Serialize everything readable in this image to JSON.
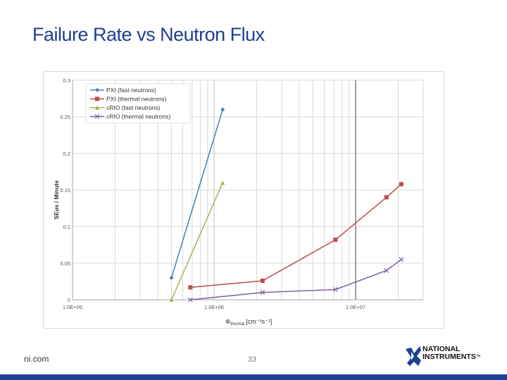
{
  "slide": {
    "title": "Failure Rate vs Neutron Flux",
    "footer_left": "ni.com",
    "page_number": "33",
    "logo_line1": "NATIONAL",
    "logo_line2": "INSTRUMENTS",
    "logo_mark": "™"
  },
  "chart_data": {
    "type": "line",
    "title": "",
    "xscale": "log",
    "xlim": [
      100000,
      30000000
    ],
    "ylim": [
      0,
      0.3
    ],
    "xticks": [
      {
        "value": 100000,
        "label": "1.0E+05"
      },
      {
        "value": 1000000,
        "label": "1.0E+06"
      },
      {
        "value": 10000000,
        "label": "1.0E+07"
      }
    ],
    "yticks": [
      {
        "value": 0,
        "label": "0"
      },
      {
        "value": 0.05,
        "label": "0.05"
      },
      {
        "value": 0.1,
        "label": "0.1"
      },
      {
        "value": 0.15,
        "label": "0.15"
      },
      {
        "value": 0.2,
        "label": "0.2"
      },
      {
        "value": 0.25,
        "label": "0.25"
      },
      {
        "value": 0.3,
        "label": "0.3"
      }
    ],
    "xlabel": "Φ",
    "xlabel_sub": "thermal",
    "xlabel_units": "[cm⁻²s⁻¹]",
    "ylabel": "SEus / Minute",
    "grid": true,
    "legend": "top-left",
    "series": [
      {
        "name": "PXI (fast neutrons)",
        "color": "#4a7ebb",
        "marker": "diamond",
        "x": [
          500000,
          1150000
        ],
        "y": [
          0.03,
          0.26
        ]
      },
      {
        "name": "PXI (thermal neutrons)",
        "color": "#be4b48",
        "marker": "square",
        "x": [
          680000,
          2200000,
          7200000,
          16500000,
          21000000
        ],
        "y": [
          0.017,
          0.026,
          0.082,
          0.14,
          0.158
        ]
      },
      {
        "name": "cRIO (fast neutrons)",
        "color": "#98b954",
        "marker": "triangle",
        "x": [
          500000,
          1150000
        ],
        "y": [
          0.0,
          0.16
        ]
      },
      {
        "name": "cRIO (thermal neutrons)",
        "color": "#7d60a0",
        "marker": "x",
        "x": [
          680000,
          2200000,
          7200000,
          16500000,
          21000000
        ],
        "y": [
          0.0,
          0.01,
          0.014,
          0.04,
          0.055
        ]
      }
    ]
  }
}
